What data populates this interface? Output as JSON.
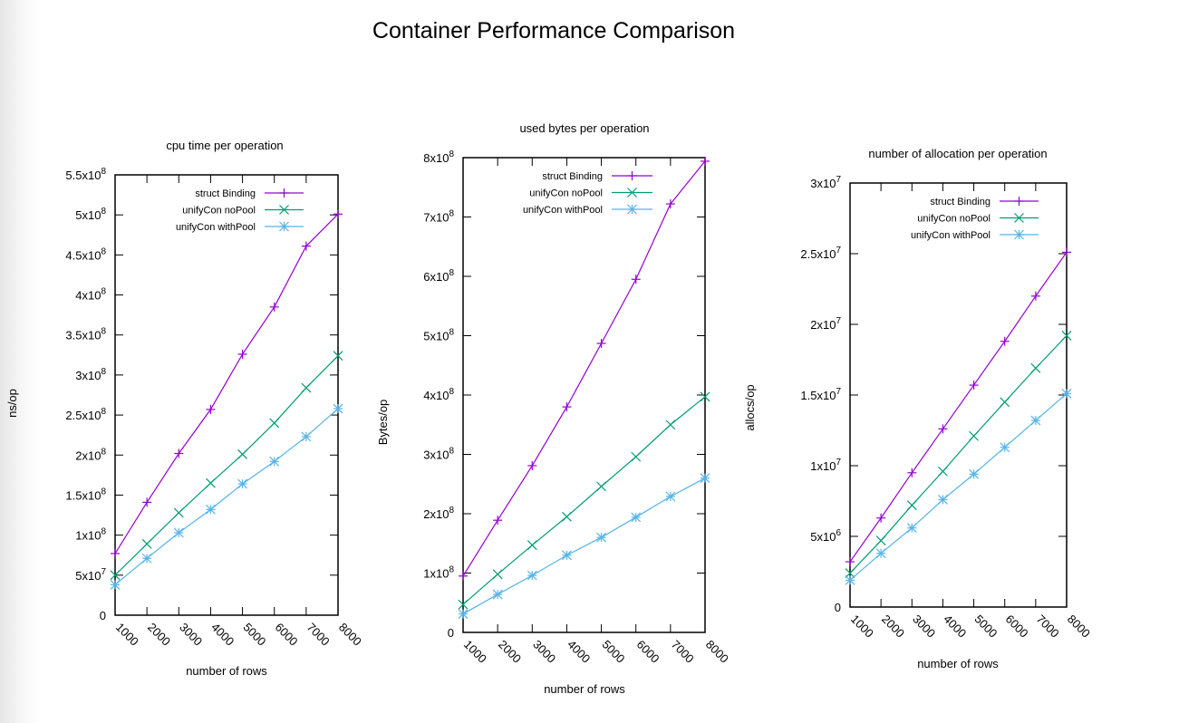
{
  "title": "Container Performance Comparison",
  "colors": {
    "struct_binding": "#9400d3",
    "unifycon_nopool": "#009e73",
    "unifycon_withpool": "#56b4e9"
  },
  "chart_data": [
    {
      "type": "line",
      "title": "cpu time per operation",
      "xlabel": "number of rows",
      "ylabel": "ns/op",
      "x": [
        1000,
        2000,
        3000,
        4000,
        5000,
        6000,
        7000,
        8000
      ],
      "xticks": [
        "1000",
        "2000",
        "3000",
        "4000",
        "5000",
        "6000",
        "7000",
        "8000"
      ],
      "ylim": [
        0,
        550000000
      ],
      "yticks": [
        {
          "v": 0,
          "label": "0"
        },
        {
          "v": 50000000,
          "label": "5x10^7"
        },
        {
          "v": 100000000,
          "label": "1x10^8"
        },
        {
          "v": 150000000,
          "label": "1.5x10^8"
        },
        {
          "v": 200000000,
          "label": "2x10^8"
        },
        {
          "v": 250000000,
          "label": "2.5x10^8"
        },
        {
          "v": 300000000,
          "label": "3x10^8"
        },
        {
          "v": 350000000,
          "label": "3.5x10^8"
        },
        {
          "v": 400000000,
          "label": "4x10^8"
        },
        {
          "v": 450000000,
          "label": "4.5x10^8"
        },
        {
          "v": 500000000,
          "label": "5x10^8"
        },
        {
          "v": 550000000,
          "label": "5.5x10^8"
        }
      ],
      "grid": false,
      "legend": "top-right",
      "series": [
        {
          "name": "struct Binding",
          "marker": "plus",
          "values": [
            77000000,
            141000000,
            202000000,
            257000000,
            326000000,
            385000000,
            461000000,
            501000000
          ]
        },
        {
          "name": "unifyCon noPool",
          "marker": "cross",
          "values": [
            50000000,
            89000000,
            128000000,
            165000000,
            201000000,
            240000000,
            284000000,
            324000000
          ]
        },
        {
          "name": "unifyCon withPool",
          "marker": "star",
          "values": [
            38000000,
            71000000,
            103000000,
            132000000,
            164000000,
            192000000,
            223000000,
            258000000
          ]
        }
      ]
    },
    {
      "type": "line",
      "title": "used bytes per operation",
      "xlabel": "number of rows",
      "ylabel": "Bytes/op",
      "x": [
        1000,
        2000,
        3000,
        4000,
        5000,
        6000,
        7000,
        8000
      ],
      "xticks": [
        "1000",
        "2000",
        "3000",
        "4000",
        "5000",
        "6000",
        "7000",
        "8000"
      ],
      "ylim": [
        0,
        800000000
      ],
      "yticks": [
        {
          "v": 0,
          "label": "0"
        },
        {
          "v": 100000000,
          "label": "1x10^8"
        },
        {
          "v": 200000000,
          "label": "2x10^8"
        },
        {
          "v": 300000000,
          "label": "3x10^8"
        },
        {
          "v": 400000000,
          "label": "4x10^8"
        },
        {
          "v": 500000000,
          "label": "5x10^8"
        },
        {
          "v": 600000000,
          "label": "6x10^8"
        },
        {
          "v": 700000000,
          "label": "7x10^8"
        },
        {
          "v": 800000000,
          "label": "8x10^8"
        }
      ],
      "grid": false,
      "legend": "top-right",
      "series": [
        {
          "name": "struct Binding",
          "marker": "plus",
          "values": [
            95000000,
            189000000,
            281000000,
            380000000,
            487000000,
            595000000,
            722000000,
            794000000
          ]
        },
        {
          "name": "unifyCon noPool",
          "marker": "cross",
          "values": [
            47000000,
            98000000,
            147000000,
            195000000,
            246000000,
            296000000,
            350000000,
            397000000
          ]
        },
        {
          "name": "unifyCon withPool",
          "marker": "star",
          "values": [
            31000000,
            64000000,
            96000000,
            130000000,
            160000000,
            194000000,
            229000000,
            260000000
          ]
        }
      ]
    },
    {
      "type": "line",
      "title": "number of allocation per operation",
      "xlabel": "number of rows",
      "ylabel": "allocs/op",
      "x": [
        1000,
        2000,
        3000,
        4000,
        5000,
        6000,
        7000,
        8000
      ],
      "xticks": [
        "1000",
        "2000",
        "3000",
        "4000",
        "5000",
        "6000",
        "7000",
        "8000"
      ],
      "ylim": [
        0,
        30000000
      ],
      "yticks": [
        {
          "v": 0,
          "label": "0"
        },
        {
          "v": 5000000,
          "label": "5x10^6"
        },
        {
          "v": 10000000,
          "label": "1x10^7"
        },
        {
          "v": 15000000,
          "label": "1.5x10^7"
        },
        {
          "v": 20000000,
          "label": "2x10^7"
        },
        {
          "v": 25000000,
          "label": "2.5x10^7"
        },
        {
          "v": 30000000,
          "label": "3x10^7"
        }
      ],
      "grid": false,
      "legend": "top-right",
      "series": [
        {
          "name": "struct Binding",
          "marker": "plus",
          "values": [
            3200000,
            6300000,
            9500000,
            12600000,
            15700000,
            18800000,
            22000000,
            25100000
          ]
        },
        {
          "name": "unifyCon noPool",
          "marker": "cross",
          "values": [
            2400000,
            4700000,
            7200000,
            9600000,
            12100000,
            14500000,
            16900000,
            19200000
          ]
        },
        {
          "name": "unifyCon withPool",
          "marker": "star",
          "values": [
            1900000,
            3800000,
            5600000,
            7600000,
            9400000,
            11300000,
            13200000,
            15100000
          ]
        }
      ]
    }
  ]
}
